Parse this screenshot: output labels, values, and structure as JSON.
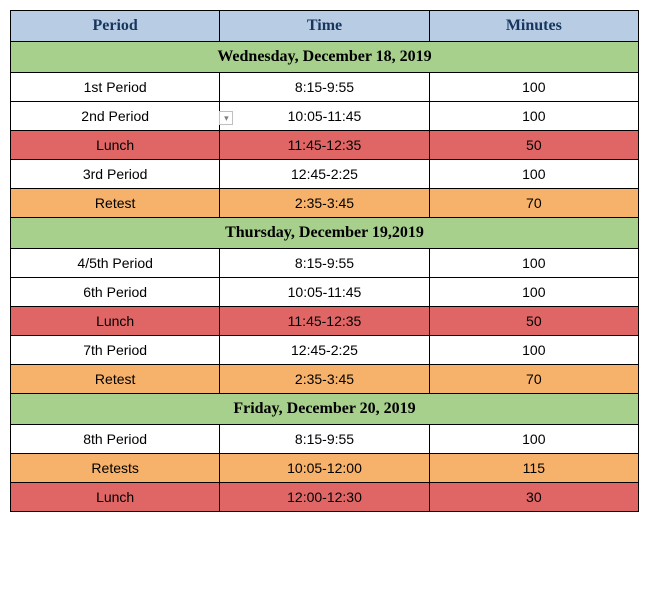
{
  "header": {
    "col1": "Period",
    "col2": "Time",
    "col3": "Minutes",
    "bg": "#b8cce4",
    "fg": "#17365d"
  },
  "colors": {
    "day_bg": "#a8d08d",
    "normal_bg": "#ffffff",
    "lunch_bg": "#e06666",
    "retest_bg": "#f6b26b",
    "border": "#000000"
  },
  "days": [
    {
      "title": "Wednesday, December 18, 2019",
      "rows": [
        {
          "type": "normal",
          "period": "1st Period",
          "time": "8:15-9:55",
          "minutes": "100"
        },
        {
          "type": "normal",
          "period": "2nd Period",
          "time": "10:05-11:45",
          "minutes": "100",
          "marker": true
        },
        {
          "type": "lunch",
          "period": "Lunch",
          "time": "11:45-12:35",
          "minutes": "50"
        },
        {
          "type": "normal",
          "period": "3rd Period",
          "time": "12:45-2:25",
          "minutes": "100"
        },
        {
          "type": "retest",
          "period": "Retest",
          "time": "2:35-3:45",
          "minutes": "70"
        }
      ]
    },
    {
      "title": "Thursday, December 19,2019",
      "rows": [
        {
          "type": "normal",
          "period": "4/5th Period",
          "time": "8:15-9:55",
          "minutes": "100"
        },
        {
          "type": "normal",
          "period": "6th Period",
          "time": "10:05-11:45",
          "minutes": "100"
        },
        {
          "type": "lunch",
          "period": "Lunch",
          "time": "11:45-12:35",
          "minutes": "50"
        },
        {
          "type": "normal",
          "period": "7th Period",
          "time": "12:45-2:25",
          "minutes": "100"
        },
        {
          "type": "retest",
          "period": "Retest",
          "time": "2:35-3:45",
          "minutes": "70"
        }
      ]
    },
    {
      "title": "Friday, December 20, 2019",
      "rows": [
        {
          "type": "normal",
          "period": "8th Period",
          "time": "8:15-9:55",
          "minutes": "100"
        },
        {
          "type": "retest",
          "period": "Retests",
          "time": "10:05-12:00",
          "minutes": "115"
        },
        {
          "type": "lunch",
          "period": "Lunch",
          "time": "12:00-12:30",
          "minutes": "30"
        }
      ]
    }
  ]
}
